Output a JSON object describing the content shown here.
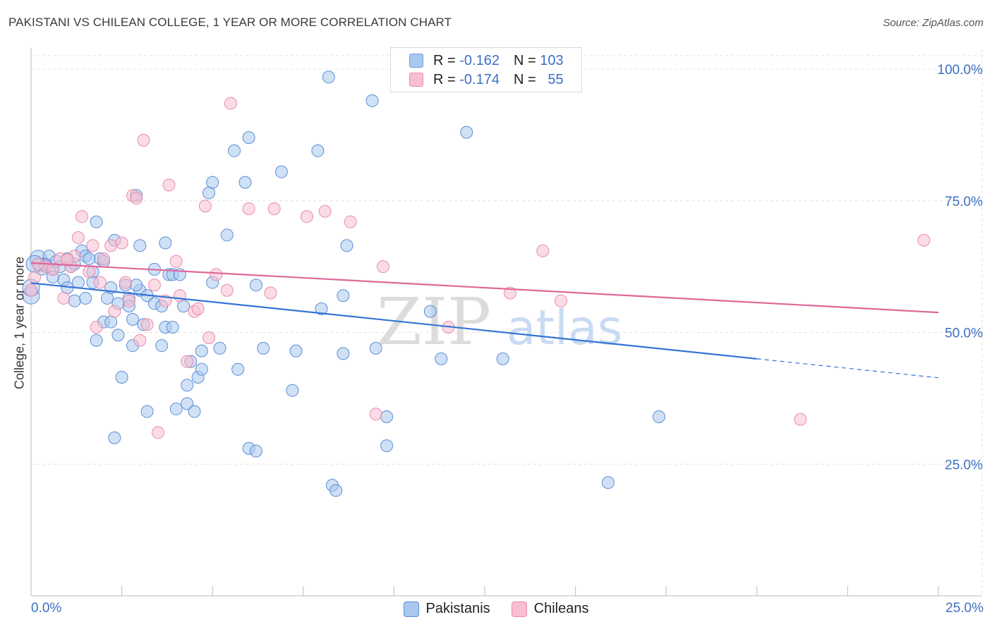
{
  "title": "PAKISTANI VS CHILEAN COLLEGE, 1 YEAR OR MORE CORRELATION CHART",
  "source": "Source: ZipAtlas.com",
  "watermark": {
    "zip": "ZIP",
    "atlas": "atlas"
  },
  "legend": {
    "rows": [
      {
        "r_label": "R =",
        "r_value": "-0.162",
        "n_label": "N =",
        "n_value": "103",
        "color": "#a9c8ef",
        "stroke": "#6f9bd8"
      },
      {
        "r_label": "R =",
        "r_value": "-0.174",
        "n_label": "N =",
        "n_value": "55",
        "color": "#f8bfd2",
        "stroke": "#e98aaa"
      }
    ]
  },
  "chart_data": {
    "type": "scatter",
    "ylabel": "College, 1 year or more",
    "xlim": [
      0,
      25
    ],
    "ylim": [
      0,
      100
    ],
    "x_tick_labels": [
      "0.0%",
      "25.0%"
    ],
    "y_tick_labels": [
      {
        "value": 100,
        "label": "100.0%"
      },
      {
        "value": 75,
        "label": "75.0%"
      },
      {
        "value": 50,
        "label": "50.0%"
      },
      {
        "value": 25,
        "label": "25.0%"
      }
    ],
    "grid": true,
    "legend_position": "bottom",
    "series": [
      {
        "name": "Pakistanis",
        "color": "#a9c8ef",
        "stroke": "#5b8fd6",
        "line_color": "#3574d4",
        "trend": {
          "x0": 0.0,
          "y0": 59.4,
          "x1": 20.0,
          "y1": 45.0,
          "dash_to_x": 25.0,
          "dash_to_y": 41.4
        },
        "points": [
          [
            0.0,
            57.0
          ],
          [
            0.0,
            58.5
          ],
          [
            0.2,
            64.0
          ],
          [
            0.3,
            62.5
          ],
          [
            0.4,
            63.0
          ],
          [
            0.5,
            64.5
          ],
          [
            0.6,
            62.0
          ],
          [
            0.7,
            63.5
          ],
          [
            0.8,
            62.5
          ],
          [
            0.9,
            60.0
          ],
          [
            1.0,
            64.0
          ],
          [
            1.0,
            58.5
          ],
          [
            1.1,
            62.5
          ],
          [
            1.2,
            56.0
          ],
          [
            1.2,
            63.0
          ],
          [
            1.3,
            59.5
          ],
          [
            1.4,
            65.5
          ],
          [
            1.5,
            64.5
          ],
          [
            1.5,
            56.5
          ],
          [
            1.7,
            61.5
          ],
          [
            1.7,
            59.5
          ],
          [
            1.8,
            48.5
          ],
          [
            1.8,
            71.0
          ],
          [
            1.9,
            64.0
          ],
          [
            2.0,
            63.5
          ],
          [
            2.0,
            52.0
          ],
          [
            2.1,
            56.5
          ],
          [
            2.2,
            52.0
          ],
          [
            2.2,
            58.5
          ],
          [
            2.3,
            67.5
          ],
          [
            2.3,
            30.0
          ],
          [
            2.4,
            55.5
          ],
          [
            2.4,
            49.5
          ],
          [
            2.5,
            41.5
          ],
          [
            2.6,
            59.0
          ],
          [
            2.7,
            56.5
          ],
          [
            2.7,
            55.0
          ],
          [
            2.8,
            52.5
          ],
          [
            2.8,
            47.5
          ],
          [
            2.9,
            76.0
          ],
          [
            3.0,
            58.0
          ],
          [
            3.0,
            66.5
          ],
          [
            3.1,
            51.5
          ],
          [
            3.2,
            57.0
          ],
          [
            3.2,
            35.0
          ],
          [
            3.4,
            55.5
          ],
          [
            3.4,
            62.0
          ],
          [
            3.6,
            55.0
          ],
          [
            3.6,
            47.5
          ],
          [
            3.7,
            67.0
          ],
          [
            3.7,
            51.0
          ],
          [
            3.8,
            61.0
          ],
          [
            3.9,
            51.0
          ],
          [
            3.9,
            61.0
          ],
          [
            4.0,
            35.5
          ],
          [
            4.2,
            55.0
          ],
          [
            4.3,
            40.0
          ],
          [
            4.3,
            36.5
          ],
          [
            4.4,
            44.5
          ],
          [
            4.5,
            35.0
          ],
          [
            4.6,
            41.5
          ],
          [
            4.7,
            43.0
          ],
          [
            4.7,
            46.5
          ],
          [
            4.9,
            76.5
          ],
          [
            5.0,
            59.5
          ],
          [
            5.0,
            78.5
          ],
          [
            5.2,
            47.0
          ],
          [
            5.4,
            68.5
          ],
          [
            5.6,
            84.5
          ],
          [
            5.7,
            43.0
          ],
          [
            5.9,
            78.5
          ],
          [
            6.0,
            87.0
          ],
          [
            6.0,
            28.0
          ],
          [
            6.2,
            59.0
          ],
          [
            6.2,
            27.5
          ],
          [
            6.4,
            47.0
          ],
          [
            6.9,
            80.5
          ],
          [
            7.2,
            39.0
          ],
          [
            7.3,
            46.5
          ],
          [
            7.9,
            84.5
          ],
          [
            8.0,
            54.5
          ],
          [
            8.2,
            98.5
          ],
          [
            8.3,
            21.0
          ],
          [
            8.4,
            20.0
          ],
          [
            8.6,
            46.0
          ],
          [
            8.6,
            57.0
          ],
          [
            8.7,
            66.5
          ],
          [
            9.4,
            94.0
          ],
          [
            9.5,
            47.0
          ],
          [
            9.8,
            34.0
          ],
          [
            9.8,
            28.5
          ],
          [
            11.0,
            54.0
          ],
          [
            11.3,
            45.0
          ],
          [
            12.0,
            88.0
          ],
          [
            13.0,
            45.0
          ],
          [
            15.9,
            21.5
          ],
          [
            17.3,
            34.0
          ],
          [
            0.1,
            63.0
          ],
          [
            1.6,
            64.0
          ],
          [
            2.9,
            59.0
          ],
          [
            4.1,
            61.0
          ],
          [
            0.4,
            62.8
          ],
          [
            0.6,
            60.5
          ]
        ]
      },
      {
        "name": "Chileans",
        "color": "#f8bfd2",
        "stroke": "#e98aaa",
        "line_color": "#e0689a",
        "trend": {
          "x0": 0.0,
          "y0": 63.2,
          "x1": 25.0,
          "y1": 53.8
        },
        "points": [
          [
            0.0,
            58.0
          ],
          [
            0.1,
            60.5
          ],
          [
            0.4,
            62.5
          ],
          [
            0.6,
            62.0
          ],
          [
            0.8,
            64.0
          ],
          [
            0.9,
            56.5
          ],
          [
            1.1,
            62.5
          ],
          [
            1.2,
            64.5
          ],
          [
            1.3,
            68.0
          ],
          [
            1.4,
            72.0
          ],
          [
            1.6,
            61.5
          ],
          [
            1.7,
            66.5
          ],
          [
            1.8,
            51.0
          ],
          [
            1.9,
            59.5
          ],
          [
            2.0,
            64.0
          ],
          [
            2.2,
            66.5
          ],
          [
            2.3,
            54.0
          ],
          [
            2.5,
            67.0
          ],
          [
            2.6,
            59.5
          ],
          [
            2.7,
            56.0
          ],
          [
            2.8,
            76.0
          ],
          [
            2.9,
            75.5
          ],
          [
            3.0,
            48.5
          ],
          [
            3.1,
            86.5
          ],
          [
            3.2,
            51.5
          ],
          [
            3.4,
            59.0
          ],
          [
            3.5,
            31.0
          ],
          [
            3.7,
            56.0
          ],
          [
            3.8,
            78.0
          ],
          [
            4.0,
            63.5
          ],
          [
            4.1,
            57.0
          ],
          [
            4.3,
            44.5
          ],
          [
            4.5,
            54.0
          ],
          [
            4.6,
            54.5
          ],
          [
            4.8,
            74.0
          ],
          [
            4.9,
            49.0
          ],
          [
            5.1,
            61.0
          ],
          [
            5.4,
            58.0
          ],
          [
            5.5,
            93.5
          ],
          [
            6.0,
            73.5
          ],
          [
            6.6,
            57.5
          ],
          [
            6.7,
            73.5
          ],
          [
            7.6,
            72.0
          ],
          [
            8.1,
            73.0
          ],
          [
            8.8,
            71.0
          ],
          [
            9.5,
            34.5
          ],
          [
            9.7,
            62.5
          ],
          [
            11.5,
            51.0
          ],
          [
            13.2,
            57.5
          ],
          [
            14.1,
            65.5
          ],
          [
            14.6,
            56.0
          ],
          [
            21.2,
            33.5
          ],
          [
            24.6,
            67.5
          ],
          [
            0.2,
            63.0
          ],
          [
            1.0,
            63.8
          ]
        ]
      }
    ]
  }
}
